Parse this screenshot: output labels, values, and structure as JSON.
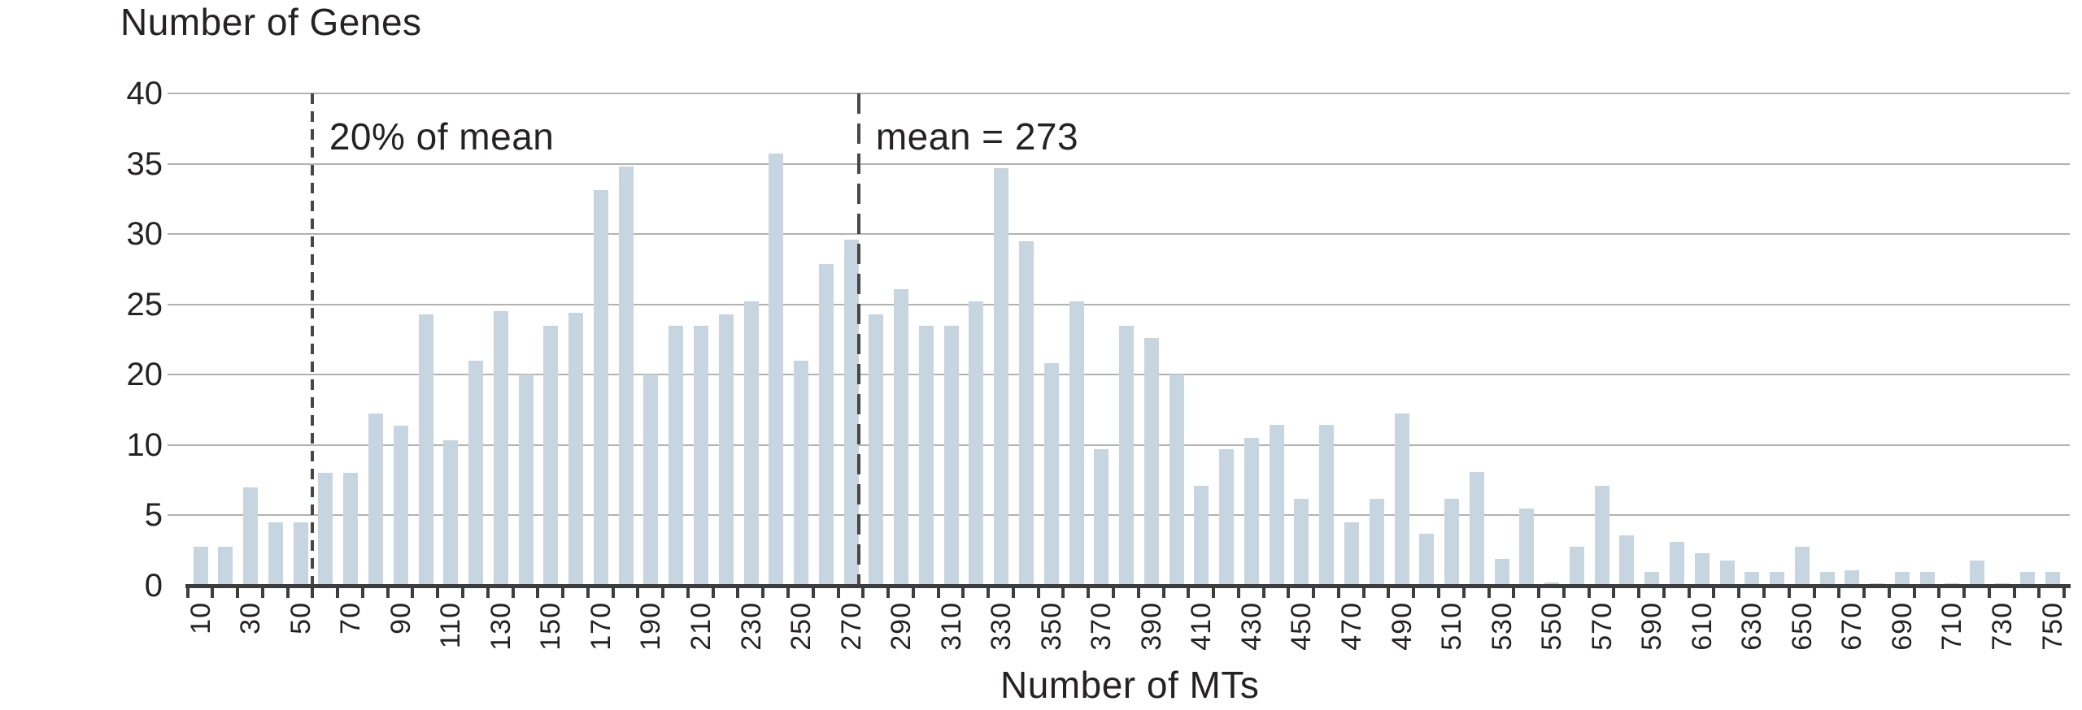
{
  "chart_data": {
    "type": "bar",
    "title": "",
    "ylabel": "Number of Genes",
    "xlabel": "Number of MTs",
    "bar_color": "#c6d5df",
    "gridline_color": "#b2b2b2",
    "axis_color": "#3d3d3d",
    "text_color": "#262223",
    "grid": "horizontal gridlines on",
    "legend": "none",
    "y_axis_note": "gridlines equally spaced but labeled 0,5,10,20,25,30,35,40 - the 15 step is skipped (broken scale)",
    "y_ticks": [
      {
        "label": "0",
        "seg": 0
      },
      {
        "label": "5",
        "seg": 1
      },
      {
        "label": "10",
        "seg": 2
      },
      {
        "label": "20",
        "seg": 3
      },
      {
        "label": "25",
        "seg": 4
      },
      {
        "label": "30",
        "seg": 5
      },
      {
        "label": "35",
        "seg": 6
      },
      {
        "label": "40",
        "seg": 7
      }
    ],
    "x_tick_labels": [
      "10",
      "30",
      "50",
      "70",
      "90",
      "110",
      "130",
      "150",
      "170",
      "190",
      "210",
      "230",
      "250",
      "270",
      "290",
      "310",
      "330",
      "350",
      "370",
      "390",
      "410",
      "430",
      "450",
      "470",
      "490",
      "510",
      "530",
      "550",
      "570",
      "590",
      "610",
      "630",
      "650",
      "670",
      "690",
      "710",
      "730",
      "750"
    ],
    "x_start": 10,
    "x_step": 10,
    "categories": [
      10,
      20,
      30,
      40,
      50,
      60,
      70,
      80,
      90,
      100,
      110,
      120,
      130,
      140,
      150,
      160,
      170,
      180,
      190,
      200,
      210,
      220,
      230,
      240,
      250,
      260,
      270,
      280,
      290,
      300,
      310,
      320,
      330,
      340,
      350,
      360,
      370,
      380,
      390,
      400,
      410,
      420,
      430,
      440,
      450,
      460,
      470,
      480,
      490,
      500,
      510,
      520,
      530,
      540,
      550,
      560,
      570,
      580,
      590,
      600,
      610,
      620,
      630,
      640,
      650,
      660,
      670,
      680,
      690,
      700,
      710,
      720,
      730,
      740,
      750
    ],
    "values": [
      2.8,
      2.8,
      7,
      4.5,
      4.5,
      8,
      8,
      14.5,
      12.8,
      24.3,
      10.7,
      21,
      24.5,
      20,
      23.5,
      24.4,
      33.1,
      34.8,
      20,
      23.5,
      23.5,
      24.3,
      25.2,
      35.7,
      21,
      27.9,
      29.6,
      24.3,
      26.1,
      23.5,
      23.5,
      25.2,
      34.7,
      29.5,
      20.8,
      25.2,
      9.7,
      23.5,
      22.6,
      20,
      7.1,
      9.7,
      11,
      12.9,
      6.2,
      12.9,
      4.5,
      6.2,
      14.5,
      3.7,
      6.2,
      8.1,
      1.9,
      5.5,
      0.25,
      2.8,
      7.1,
      3.6,
      1,
      3.1,
      2.3,
      1.8,
      1,
      1,
      2.8,
      1,
      1.1,
      0.2,
      1,
      1,
      0.2,
      1.8,
      0.15,
      1,
      1
    ],
    "annotations": [
      {
        "text": "20% of mean",
        "x_value": 54.6,
        "dash": "short"
      },
      {
        "text": "mean = 273",
        "x_value": 273,
        "dash": "long"
      }
    ]
  }
}
